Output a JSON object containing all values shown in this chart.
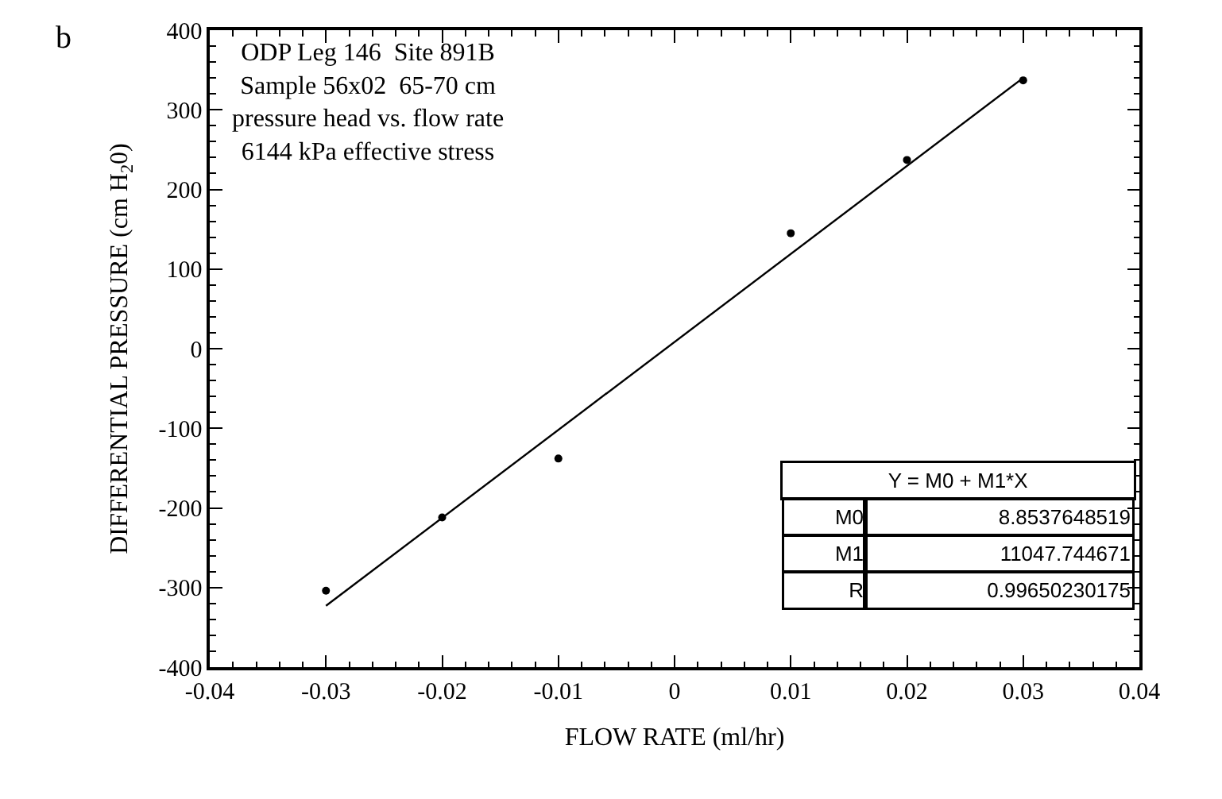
{
  "chart_data": {
    "type": "scatter",
    "xlabel": "FLOW RATE (ml/hr)",
    "ylabel": "DIFFERENTIAL PRESSURE (cm H$_{2}$0)",
    "series": [
      {
        "color": "#000000",
        "x": [
          -0.03,
          -0.02,
          -0.01,
          0.01,
          0.02,
          0.03
        ],
        "values": [
          -304,
          -212,
          -138,
          145,
          237,
          337
        ]
      },
      {
        "type": "line",
        "marker": "none",
        "color": "#000000",
        "x": [
          -0.03,
          0.03
        ],
        "values": [
          -323,
          340
        ]
      }
    ],
    "xlim": [
      -0.04,
      0.04
    ],
    "xticks": [
      -0.04,
      -0.03,
      -0.02,
      -0.01,
      0,
      0.01,
      0.02,
      0.03,
      0.04
    ],
    "ylim": [
      -400,
      400
    ],
    "yticks": [
      -400,
      -300,
      -200,
      -100,
      0,
      100,
      200,
      300,
      400
    ],
    "marker": "circle",
    "line_style": "solid",
    "annotations": [
      "b",
      "ODP Leg 146  Site 891B\nSample 56x02  65-70 cm\npressure head vs. flow rate\n6144 kPa effective stress",
      "Y = M0 + M1*X",
      "M0",
      "8.8537648519",
      "M1",
      "11047.744671",
      "R",
      "0.99650230175"
    ]
  }
}
